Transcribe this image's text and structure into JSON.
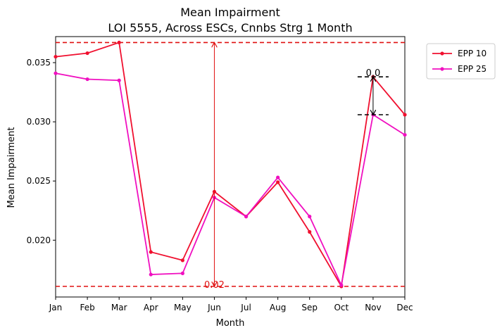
{
  "chart_data": {
    "type": "line",
    "title": "Mean Impairment",
    "subtitle": "LOI 5555, Across ESCs, Cnnbs Strg 1 Month",
    "xlabel": "Month",
    "ylabel": "Mean Impairment",
    "categories": [
      "Jan",
      "Feb",
      "Mar",
      "Apr",
      "May",
      "Jun",
      "Jul",
      "Aug",
      "Sep",
      "Oct",
      "Nov",
      "Dec"
    ],
    "ylim": [
      0.0152,
      0.0372
    ],
    "yticks": [
      0.02,
      0.025,
      0.03,
      0.035
    ],
    "ytick_labels": [
      "0.020",
      "0.025",
      "0.030",
      "0.035"
    ],
    "grid": false,
    "legend_position": "outside-top-right",
    "series": [
      {
        "name": "EPP 10",
        "color": "#f0102f",
        "values": [
          0.0355,
          0.0358,
          0.0367,
          0.019,
          0.0183,
          0.0241,
          0.022,
          0.0249,
          0.0207,
          0.0161,
          0.0338,
          0.0306
        ]
      },
      {
        "name": "EPP 25",
        "color": "#f010c0",
        "values": [
          0.0341,
          0.0336,
          0.0335,
          0.0171,
          0.0172,
          0.0236,
          0.022,
          0.0253,
          0.022,
          0.0162,
          0.0306,
          0.0289
        ]
      }
    ],
    "hlines": [
      {
        "y": 0.0367,
        "color": "#e01010",
        "style": "dashed"
      },
      {
        "y": 0.0161,
        "color": "#e01010",
        "style": "dashed"
      }
    ],
    "annotations": [
      {
        "text": "0.02",
        "x": "Jun",
        "y_from": 0.0161,
        "y_to": 0.0367,
        "color": "#e01010"
      },
      {
        "text": "0.0",
        "x": "Nov",
        "y_from": 0.0306,
        "y_to": 0.0338,
        "color": "#000000"
      }
    ]
  }
}
